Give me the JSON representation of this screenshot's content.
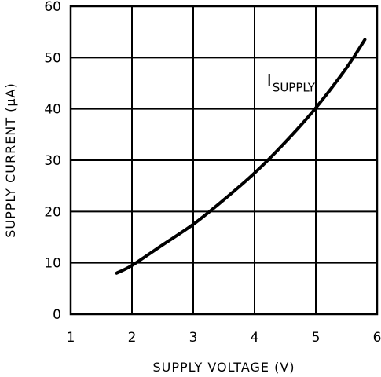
{
  "chart_data": {
    "type": "line",
    "xlabel": "SUPPLY VOLTAGE (V)",
    "ylabel": "SUPPLY CURRENT (μA)",
    "xlim": [
      1,
      6
    ],
    "ylim": [
      0,
      60
    ],
    "x_ticks": [
      "1",
      "2",
      "3",
      "4",
      "5",
      "6"
    ],
    "y_ticks": [
      "0",
      "10",
      "20",
      "30",
      "40",
      "50",
      "60"
    ],
    "grid": true,
    "series": [
      {
        "name": "I SUPPLY",
        "x": [
          1.75,
          2.0,
          2.5,
          3.0,
          3.5,
          4.0,
          4.5,
          5.0,
          5.5,
          5.8
        ],
        "y": [
          8,
          9.5,
          13.5,
          17.5,
          22.3,
          27.5,
          33.5,
          40.2,
          48.0,
          53.5
        ]
      }
    ],
    "annotations": [
      {
        "text": "I",
        "subscript": "SUPPLY",
        "x": 4.2,
        "y": 44.5
      }
    ]
  }
}
